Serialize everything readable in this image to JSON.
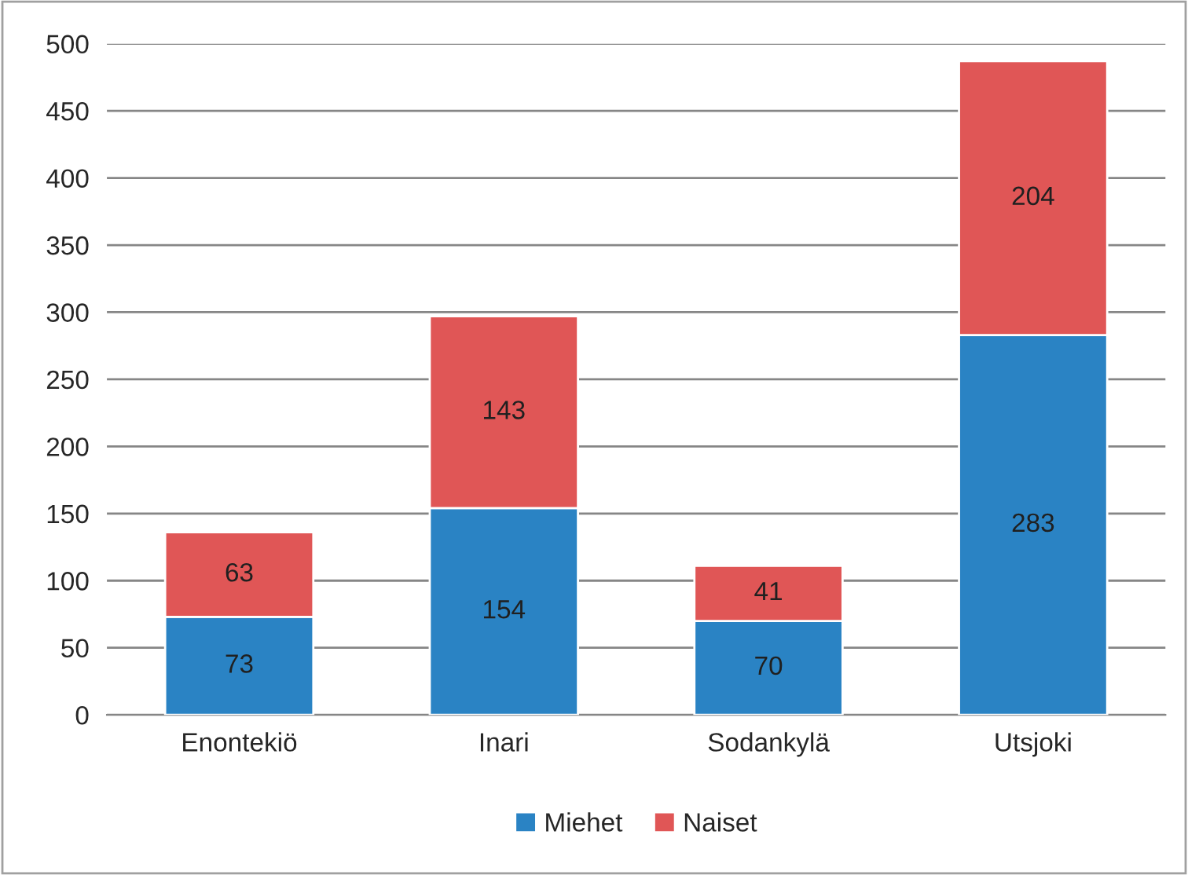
{
  "chart_data": {
    "type": "bar",
    "stacked": true,
    "categories": [
      "Enontekiö",
      "Inari",
      "Sodankylä",
      "Utsjoki"
    ],
    "series": [
      {
        "name": "Miehet",
        "color": "#2a83c4",
        "values": [
          73,
          154,
          70,
          283
        ]
      },
      {
        "name": "Naiset",
        "color": "#e05656",
        "values": [
          63,
          143,
          41,
          204
        ]
      }
    ],
    "ylim": [
      0,
      500
    ],
    "yticks": [
      0,
      50,
      100,
      150,
      200,
      250,
      300,
      350,
      400,
      450,
      500
    ],
    "grid": "y",
    "legend": "bottom",
    "data_labels": true
  }
}
